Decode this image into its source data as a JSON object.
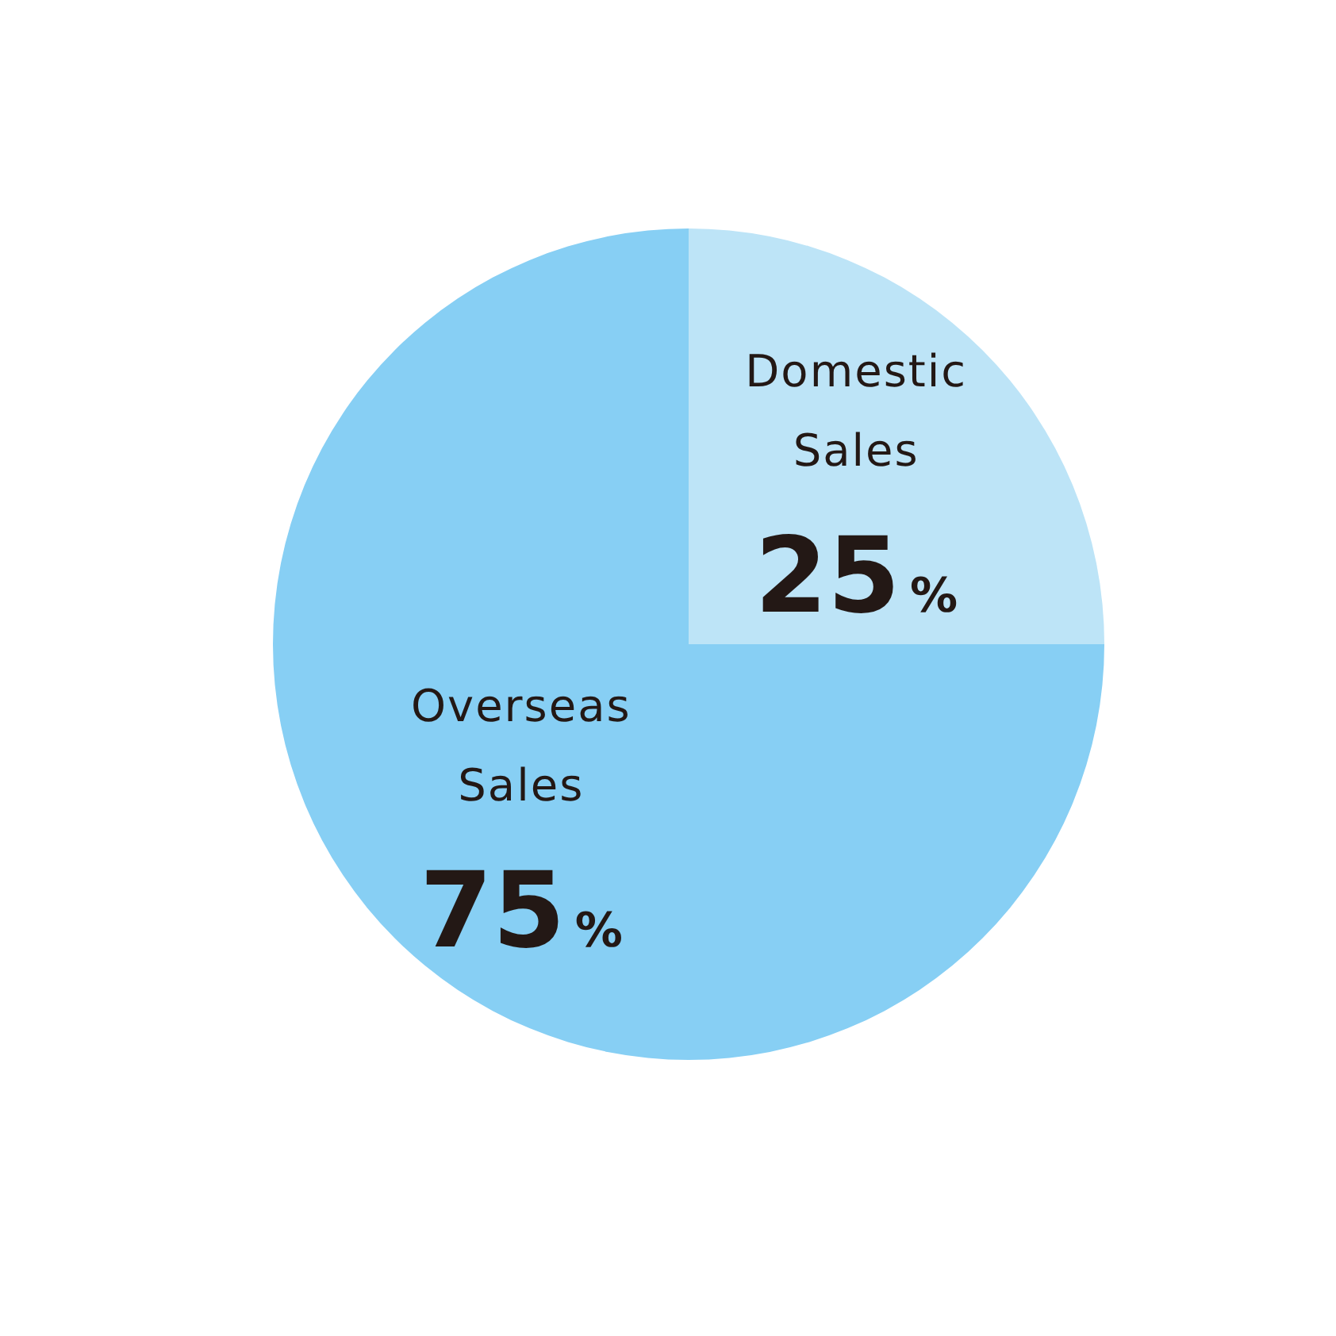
{
  "chart_data": {
    "type": "pie",
    "categories": [
      "Domestic Sales",
      "Overseas Sales"
    ],
    "values": [
      25,
      75
    ],
    "colors": [
      "#bde4f7",
      "#87cff4"
    ],
    "value_labels": [
      "25%",
      "75%"
    ]
  }
}
